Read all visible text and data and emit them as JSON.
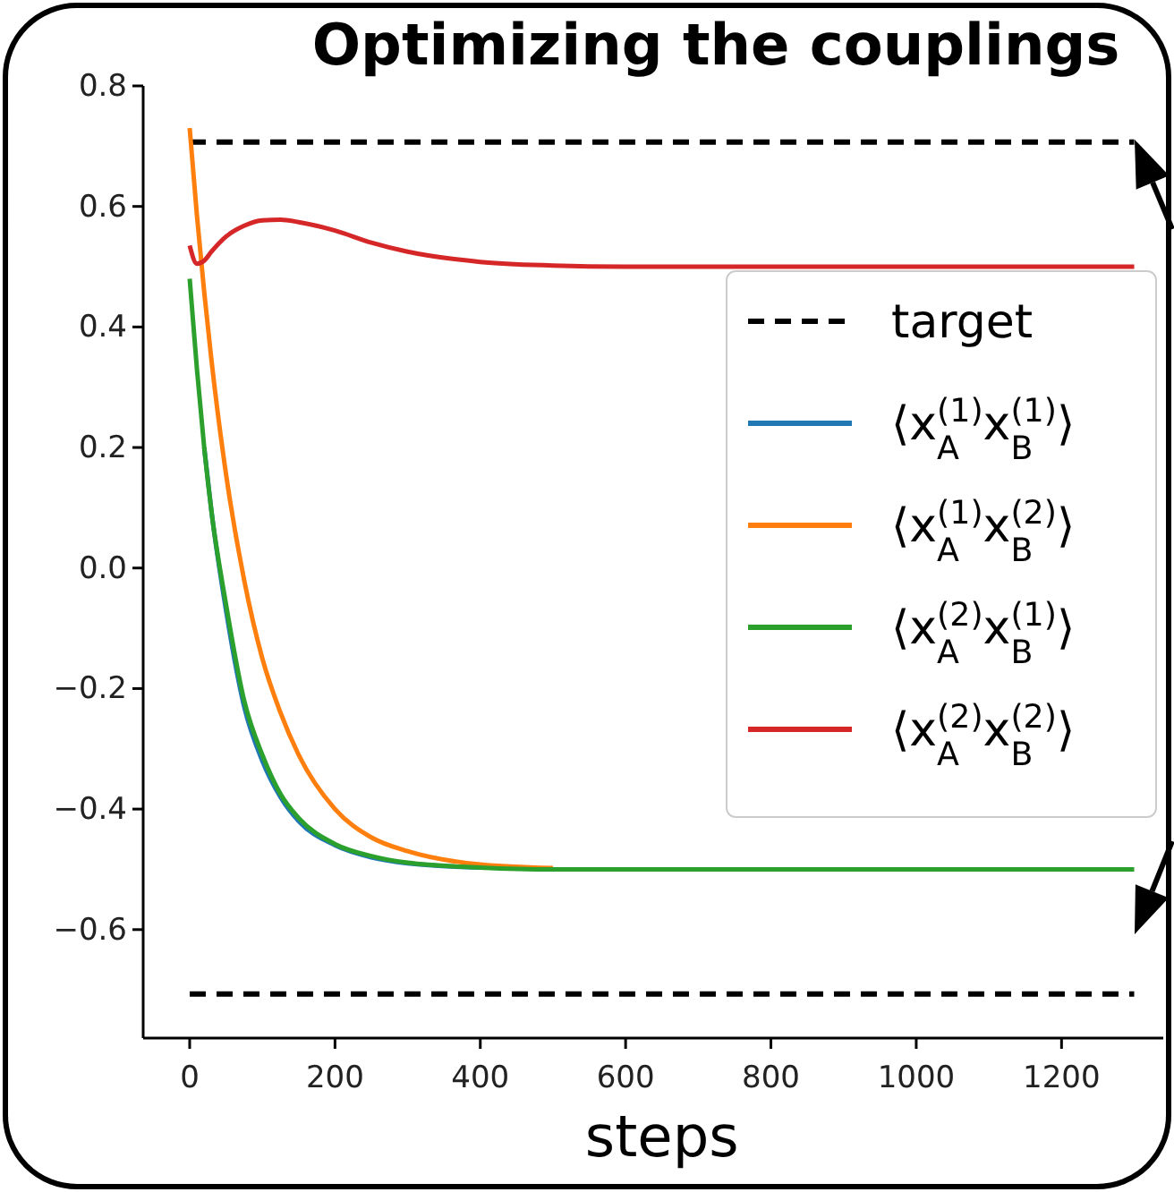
{
  "chart_data": {
    "type": "line",
    "title": "Optimizing the couplings",
    "xlabel": "steps",
    "x": [
      0,
      10,
      20,
      30,
      50,
      75,
      100,
      125,
      150,
      200,
      250,
      300,
      400,
      500,
      600,
      800,
      1000,
      1300
    ],
    "series": [
      {
        "name": "⟨x$_{A}$$^{(1)}$x$_{B}$$^{(1)}$⟩",
        "color": "#1f77b4",
        "values": [
          null,
          null,
          0.2,
          0.094,
          -0.07,
          -0.23,
          -0.32,
          -0.38,
          -0.42,
          -0.46,
          -0.48,
          -0.49,
          -0.497,
          null,
          null,
          null,
          null,
          null
        ]
      },
      {
        "name": "⟨x$_{A}$$^{(1)}$x$_{B}$$^{(2)}$⟩",
        "color": "#ff7f0e",
        "values": [
          0.73,
          0.585,
          0.458,
          0.345,
          0.156,
          -0.02,
          -0.15,
          -0.24,
          -0.31,
          -0.4,
          -0.447,
          -0.47,
          -0.492,
          -0.498,
          null,
          null,
          null,
          null
        ]
      },
      {
        "name": "⟨x$_{A}$$^{(2)}$x$_{B}$$^{(1)}$⟩",
        "color": "#2ca02c",
        "values": [
          0.48,
          0.33,
          0.2,
          0.094,
          -0.06,
          -0.22,
          -0.31,
          -0.375,
          -0.415,
          -0.458,
          -0.478,
          -0.489,
          -0.497,
          -0.5,
          -0.5,
          -0.5,
          -0.5,
          -0.5
        ]
      },
      {
        "name": "⟨x$_{A}$$^{(2)}$x$_{B}$$^{(2)}$⟩",
        "color": "#d62728",
        "values": [
          0.535,
          0.505,
          0.51,
          0.525,
          0.55,
          0.568,
          0.577,
          0.578,
          0.574,
          0.56,
          0.54,
          0.525,
          0.508,
          0.502,
          0.5,
          0.5,
          0.5,
          0.5
        ]
      }
    ],
    "ref_lines": [
      {
        "axis": "y",
        "value": 0.707,
        "label": "target",
        "color": "#000000",
        "line_style": "dashed"
      },
      {
        "axis": "y",
        "value": -0.707,
        "color": "#000000",
        "line_style": "dashed"
      }
    ],
    "xlim": [
      -64,
      1340
    ],
    "ylim": [
      -0.78,
      0.8
    ],
    "xticks": [
      0,
      200,
      400,
      600,
      800,
      1000,
      1200
    ],
    "yticks": [
      {
        "value": -0.6,
        "label": "−0.6"
      },
      {
        "value": -0.4,
        "label": "−0.4"
      },
      {
        "value": -0.2,
        "label": "−0.2"
      },
      {
        "value": 0,
        "label": "0.0"
      },
      {
        "value": 0.2,
        "label": "0.2"
      },
      {
        "value": 0.4,
        "label": "0.4"
      },
      {
        "value": 0.6,
        "label": "0.6"
      },
      {
        "value": 0.8,
        "label": "0.8"
      }
    ],
    "grid": false,
    "legend": "right",
    "marker": "none",
    "line_style": "solid"
  }
}
